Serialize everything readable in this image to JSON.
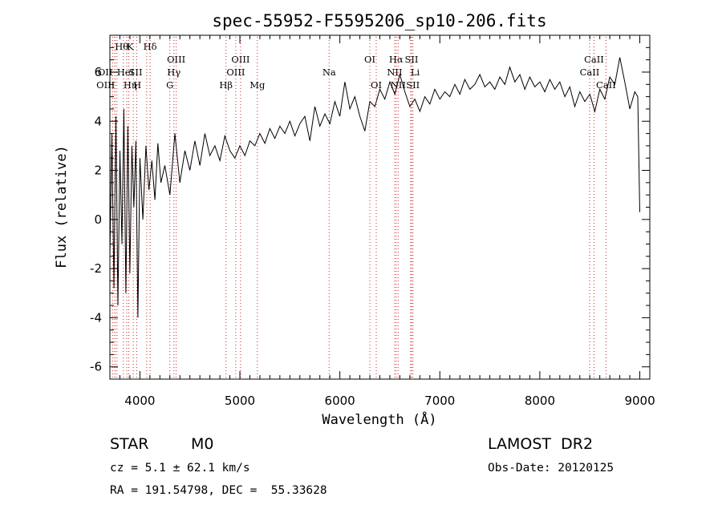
{
  "chart_data": {
    "type": "line",
    "title": "spec-55952-F5595206_sp10-206.fits",
    "xlabel": "Wavelength (Å)",
    "ylabel": "Flux (relative)",
    "xlim": [
      3700,
      9100
    ],
    "ylim": [
      -6.5,
      7.5
    ],
    "x_ticks": [
      4000,
      5000,
      6000,
      7000,
      8000,
      9000
    ],
    "y_ticks": [
      -6,
      -4,
      -2,
      0,
      2,
      4,
      6
    ],
    "grid": false,
    "series": [
      {
        "x": [
          3700,
          3720,
          3740,
          3760,
          3780,
          3800,
          3820,
          3840,
          3860,
          3880,
          3900,
          3920,
          3940,
          3960,
          3980,
          4000,
          4030,
          4060,
          4090,
          4120,
          4150,
          4180,
          4210,
          4250,
          4300,
          4350,
          4400,
          4450,
          4500,
          4550,
          4600,
          4650,
          4700,
          4750,
          4800,
          4850,
          4900,
          4950,
          5000,
          5050,
          5100,
          5150,
          5200,
          5250,
          5300,
          5350,
          5400,
          5450,
          5500,
          5550,
          5600,
          5650,
          5700,
          5750,
          5800,
          5850,
          5900,
          5950,
          6000,
          6050,
          6100,
          6150,
          6200,
          6250,
          6300,
          6350,
          6400,
          6450,
          6500,
          6550,
          6600,
          6650,
          6700,
          6750,
          6800,
          6850,
          6900,
          6950,
          7000,
          7050,
          7100,
          7150,
          7200,
          7250,
          7300,
          7350,
          7400,
          7450,
          7500,
          7550,
          7600,
          7650,
          7700,
          7750,
          7800,
          7850,
          7900,
          7950,
          8000,
          8050,
          8100,
          8150,
          8200,
          8250,
          8300,
          8350,
          8400,
          8450,
          8500,
          8550,
          8600,
          8650,
          8700,
          8750,
          8800,
          8850,
          8900,
          8950,
          8980,
          9000
        ],
        "y": [
          -1.5,
          3.5,
          -2.8,
          4.2,
          -3.5,
          2.8,
          -1.0,
          4.5,
          -3.0,
          3.8,
          -2.2,
          3.0,
          0.5,
          3.2,
          -4.0,
          2.5,
          0.0,
          3.0,
          1.2,
          2.4,
          0.8,
          3.1,
          1.5,
          2.2,
          1.0,
          3.5,
          1.5,
          2.8,
          2.0,
          3.2,
          2.2,
          3.5,
          2.6,
          3.0,
          2.4,
          3.4,
          2.8,
          2.5,
          3.0,
          2.6,
          3.2,
          3.0,
          3.5,
          3.1,
          3.7,
          3.3,
          3.8,
          3.5,
          4.0,
          3.4,
          3.9,
          4.2,
          3.2,
          4.6,
          3.8,
          4.3,
          3.9,
          4.8,
          4.2,
          5.6,
          4.5,
          5.0,
          4.2,
          3.6,
          4.8,
          4.6,
          5.3,
          4.9,
          5.6,
          5.1,
          5.9,
          5.2,
          4.6,
          4.9,
          4.4,
          5.0,
          4.7,
          5.3,
          4.9,
          5.2,
          5.0,
          5.5,
          5.1,
          5.7,
          5.3,
          5.5,
          5.9,
          5.4,
          5.6,
          5.3,
          5.8,
          5.5,
          6.2,
          5.6,
          5.9,
          5.3,
          5.8,
          5.4,
          5.6,
          5.2,
          5.7,
          5.3,
          5.6,
          5.0,
          5.4,
          4.6,
          5.2,
          4.8,
          5.1,
          4.4,
          5.3,
          4.9,
          5.8,
          5.5,
          6.6,
          5.6,
          4.5,
          5.2,
          5.0,
          0.3
        ]
      }
    ],
    "spectral_lines": [
      {
        "x": 3727,
        "label": "OII",
        "row": 2,
        "anchor": "end"
      },
      {
        "x": 3750,
        "label": "Hθ",
        "row": 0,
        "anchor": "start"
      },
      {
        "x": 3750,
        "label": "OIII",
        "row": 3,
        "anchor": "end"
      },
      {
        "x": 3770,
        "label": "HeI",
        "row": 2,
        "anchor": "start"
      },
      {
        "x": 3835,
        "label": "Hη",
        "row": 3,
        "anchor": "start"
      },
      {
        "x": 3869,
        "label": "K",
        "row": 0,
        "anchor": "start"
      },
      {
        "x": 3889,
        "label": "SII",
        "row": 2,
        "anchor": "start"
      },
      {
        "x": 3934,
        "label": "H",
        "row": 3,
        "anchor": "start"
      },
      {
        "x": 3968,
        "label": "",
        "row": 0,
        "anchor": "start"
      },
      {
        "x": 4068,
        "label": "",
        "row": 0,
        "anchor": "start"
      },
      {
        "x": 4102,
        "label": "Hδ",
        "row": 0,
        "anchor": "middle"
      },
      {
        "x": 4300,
        "label": "G",
        "row": 3,
        "anchor": "middle"
      },
      {
        "x": 4340,
        "label": "Hγ",
        "row": 2,
        "anchor": "middle"
      },
      {
        "x": 4363,
        "label": "OIII",
        "row": 1,
        "anchor": "middle"
      },
      {
        "x": 4861,
        "label": "Hβ",
        "row": 3,
        "anchor": "middle"
      },
      {
        "x": 4959,
        "label": "OIII",
        "row": 2,
        "anchor": "middle"
      },
      {
        "x": 5007,
        "label": "OIII",
        "row": 1,
        "anchor": "middle"
      },
      {
        "x": 5175,
        "label": "Mg",
        "row": 3,
        "anchor": "middle"
      },
      {
        "x": 5893,
        "label": "Na",
        "row": 2,
        "anchor": "middle"
      },
      {
        "x": 6300,
        "label": "OI",
        "row": 1,
        "anchor": "middle"
      },
      {
        "x": 6364,
        "label": "OI",
        "row": 3,
        "anchor": "middle"
      },
      {
        "x": 6548,
        "label": "NII",
        "row": 2,
        "anchor": "middle"
      },
      {
        "x": 6563,
        "label": "Hα",
        "row": 1,
        "anchor": "middle"
      },
      {
        "x": 6583,
        "label": "NII",
        "row": 3,
        "anchor": "middle"
      },
      {
        "x": 6708,
        "label": "Li",
        "row": 2,
        "anchor": "start"
      },
      {
        "x": 6717,
        "label": "SII",
        "row": 1,
        "anchor": "middle"
      },
      {
        "x": 6731,
        "label": "SII",
        "row": 3,
        "anchor": "middle"
      },
      {
        "x": 8498,
        "label": "CaII",
        "row": 2,
        "anchor": "middle"
      },
      {
        "x": 8542,
        "label": "CaII",
        "row": 1,
        "anchor": "middle"
      },
      {
        "x": 8662,
        "label": "CaII",
        "row": 3,
        "anchor": "middle"
      }
    ],
    "colors": {
      "spectrum": "#000000",
      "axes": "#000000",
      "line_markers": "#cc2222",
      "background": "#ffffff"
    }
  },
  "info": {
    "object_class": "STAR",
    "subclass": "M0",
    "survey": "LAMOST  DR2",
    "redshift_text": "cz = 5.1 ± 62.1 km/s",
    "obs_date_text": "Obs-Date: 20120125",
    "coords_text": "RA = 191.54798, DEC =  55.33628"
  }
}
